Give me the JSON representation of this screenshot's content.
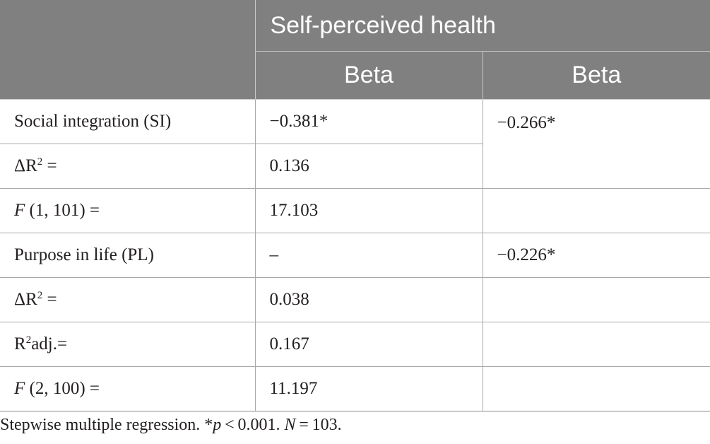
{
  "table": {
    "header_group": "Self-perceived health",
    "col_headers": [
      "Beta",
      "Beta"
    ],
    "rows": [
      {
        "label": "Social integration (SI)",
        "c2": "−0.381*",
        "c3": "−0.266*"
      },
      {
        "label_pre": "ΔR",
        "label_sup": "2",
        "label_post": " =",
        "c2": "0.136"
      },
      {
        "label_italic": "F",
        "label_rest": " (1, 101) =",
        "c2": "17.103",
        "c3": ""
      },
      {
        "label": "Purpose in life (PL)",
        "c2": "–",
        "c3": "−0.226*"
      },
      {
        "label_pre": "ΔR",
        "label_sup": "2",
        "label_post": " =",
        "c2": "0.038",
        "c3": ""
      },
      {
        "label_pre": "R",
        "label_sup": "2",
        "label_post": "adj.=",
        "c2": "0.167",
        "c3": ""
      },
      {
        "label_italic": "F",
        "label_rest": " (2, 100) =",
        "c2": "11.197",
        "c3": ""
      }
    ]
  },
  "footnote": {
    "part1": "Stepwise multiple regression. *",
    "p_italic": "p",
    "part2": " < 0.001. ",
    "n_italic": "N",
    "part3": " = 103."
  }
}
